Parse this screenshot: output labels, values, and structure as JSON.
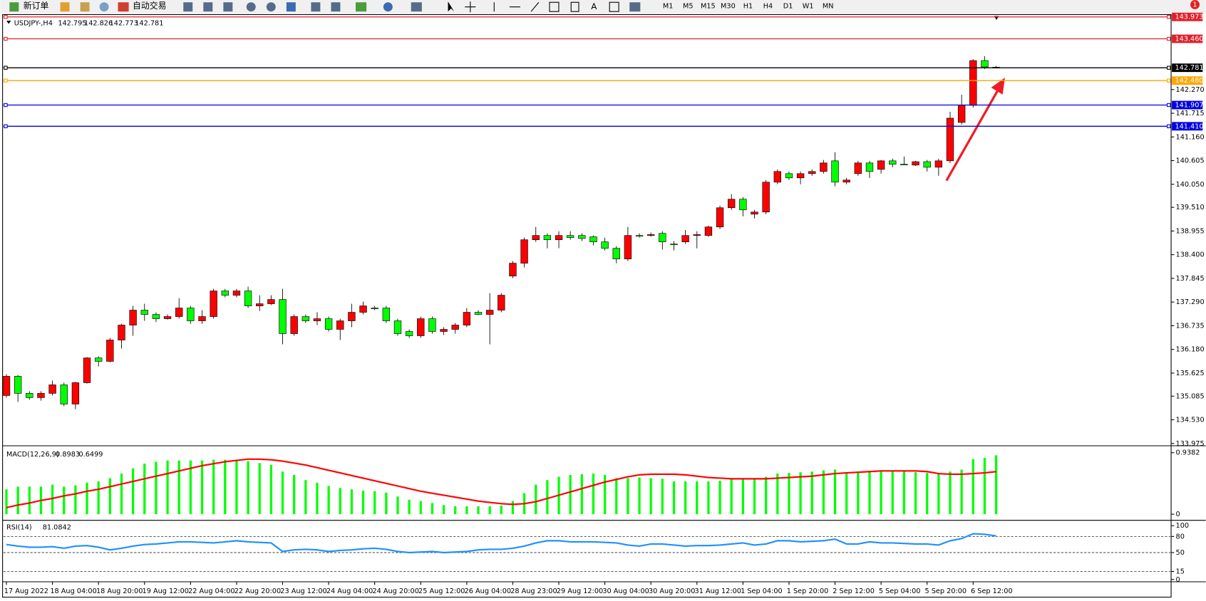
{
  "toolbar": {
    "new_order": "新订单",
    "auto_trade": "自动交易",
    "timeframes": [
      "M1",
      "M5",
      "M15",
      "M30",
      "H1",
      "H4",
      "D1",
      "W1",
      "MN"
    ],
    "badge": "1"
  },
  "chart_data": [
    {
      "type": "candlestick",
      "title": "USDJPY-,H4",
      "header_values": [
        142.795,
        142.826,
        142.773,
        142.781
      ],
      "up_color": "#ff0000",
      "down_color": "#00ff00",
      "categories": [
        "17 Aug 2022",
        null,
        null,
        null,
        "18 Aug 04:00",
        null,
        null,
        null,
        "18 Aug 20:00",
        null,
        null,
        null,
        "19 Aug 12:00",
        null,
        null,
        null,
        "22 Aug 04:00",
        null,
        null,
        null,
        "22 Aug 20:00",
        null,
        null,
        null,
        "23 Aug 12:00",
        null,
        null,
        null,
        "24 Aug 04:00",
        null,
        null,
        null,
        "24 Aug 20:00",
        null,
        null,
        null,
        "25 Aug 12:00",
        null,
        null,
        null,
        "26 Aug 04:00",
        null,
        null,
        null,
        "28 Aug 23:00",
        null,
        null,
        null,
        "29 Aug 12:00",
        null,
        null,
        null,
        "30 Aug 04:00",
        null,
        null,
        null,
        "30 Aug 20:00",
        null,
        null,
        null,
        "31 Aug 12:00",
        null,
        null,
        null,
        "1 Sep 04:00",
        null,
        null,
        null,
        "1 Sep 20:00",
        null,
        null,
        null,
        "2 Sep 12:00",
        null,
        null,
        null,
        "5 Sep 04:00",
        null,
        null,
        null,
        "5 Sep 20:00",
        null,
        null,
        null,
        "6 Sep 12:00",
        null,
        null
      ],
      "open": [
        135.1,
        135.55,
        135.15,
        135.05,
        135.15,
        135.35,
        134.9,
        135.4,
        135.98,
        135.9,
        136.4,
        136.75,
        137.1,
        137.0,
        136.9,
        136.95,
        137.15,
        136.85,
        136.95,
        137.55,
        137.45,
        137.55,
        137.2,
        137.25,
        137.35,
        136.55,
        136.95,
        136.85,
        136.9,
        136.65,
        136.85,
        137.05,
        137.15,
        137.15,
        136.85,
        136.6,
        136.5,
        136.9,
        136.6,
        136.65,
        136.75,
        137.05,
        137.0,
        137.1,
        137.9,
        138.2,
        138.75,
        138.85,
        138.75,
        138.85,
        138.85,
        138.82,
        138.7,
        138.55,
        138.3,
        138.85,
        138.85,
        138.9,
        138.65,
        138.7,
        138.85,
        138.85,
        139.05,
        139.5,
        139.7,
        139.35,
        139.4,
        140.1,
        140.3,
        140.2,
        140.3,
        140.35,
        140.6,
        140.1,
        140.3,
        140.55,
        140.4,
        140.6,
        140.52,
        140.5,
        140.58,
        140.45,
        140.6,
        141.5,
        141.9,
        142.95,
        142.795
      ],
      "high": [
        135.6,
        135.58,
        135.2,
        135.2,
        135.45,
        135.4,
        135.42,
        136.0,
        136.02,
        136.45,
        136.78,
        137.2,
        137.25,
        137.05,
        137.0,
        137.38,
        137.2,
        137.1,
        137.6,
        137.6,
        137.6,
        137.65,
        137.45,
        137.45,
        137.6,
        137.0,
        137.0,
        137.05,
        136.95,
        136.9,
        137.25,
        137.3,
        137.2,
        137.2,
        136.9,
        136.65,
        136.95,
        136.95,
        136.7,
        136.8,
        137.15,
        137.1,
        137.5,
        137.5,
        138.25,
        138.8,
        139.05,
        138.9,
        138.95,
        138.95,
        138.9,
        138.85,
        138.8,
        138.6,
        139.05,
        138.9,
        138.92,
        138.95,
        138.72,
        138.98,
        138.95,
        139.08,
        139.55,
        139.82,
        139.75,
        139.45,
        140.15,
        140.4,
        140.35,
        140.35,
        140.4,
        140.62,
        140.8,
        140.2,
        140.6,
        140.6,
        140.62,
        140.65,
        140.7,
        140.6,
        140.62,
        140.65,
        141.75,
        142.15,
        142.98,
        143.05,
        142.826
      ],
      "low": [
        135.05,
        134.95,
        135.0,
        134.98,
        135.1,
        134.85,
        134.78,
        135.38,
        135.78,
        135.88,
        136.2,
        136.5,
        136.85,
        136.82,
        136.88,
        136.9,
        136.78,
        136.78,
        136.9,
        137.4,
        137.4,
        137.15,
        137.08,
        137.22,
        136.3,
        136.5,
        136.8,
        136.75,
        136.6,
        136.4,
        136.7,
        137.0,
        137.1,
        136.8,
        136.5,
        136.45,
        136.45,
        136.55,
        136.52,
        136.55,
        136.7,
        136.98,
        136.3,
        137.05,
        137.85,
        138.1,
        138.7,
        138.55,
        138.55,
        138.75,
        138.72,
        138.62,
        138.5,
        138.2,
        138.25,
        138.8,
        138.82,
        138.52,
        138.5,
        138.65,
        138.55,
        138.82,
        139.0,
        139.45,
        139.3,
        139.25,
        139.35,
        140.05,
        140.15,
        140.05,
        140.25,
        140.3,
        140.0,
        140.05,
        140.25,
        140.2,
        140.3,
        140.45,
        140.5,
        140.48,
        140.35,
        140.25,
        140.55,
        141.45,
        141.85,
        142.75,
        142.773
      ],
      "close": [
        135.55,
        135.15,
        135.05,
        135.15,
        135.35,
        134.9,
        135.4,
        135.98,
        135.9,
        136.4,
        136.75,
        137.1,
        137.0,
        136.9,
        136.95,
        137.15,
        136.85,
        136.95,
        137.55,
        137.45,
        137.55,
        137.2,
        137.25,
        137.35,
        136.55,
        136.95,
        136.85,
        136.9,
        136.65,
        136.85,
        137.05,
        137.2,
        137.15,
        136.85,
        136.55,
        136.5,
        136.9,
        136.6,
        136.65,
        136.75,
        137.05,
        137.0,
        137.1,
        137.45,
        138.2,
        138.75,
        138.85,
        138.75,
        138.85,
        138.8,
        138.78,
        138.7,
        138.55,
        138.3,
        138.85,
        138.85,
        138.87,
        138.7,
        138.65,
        138.85,
        138.87,
        139.05,
        139.5,
        139.7,
        139.45,
        139.4,
        140.1,
        140.35,
        140.2,
        140.3,
        140.35,
        140.55,
        140.1,
        140.15,
        140.55,
        140.35,
        140.6,
        140.52,
        140.52,
        140.58,
        140.45,
        140.6,
        141.6,
        141.9,
        142.95,
        142.8,
        142.781
      ],
      "ylim": [
        133.94,
        144.009
      ],
      "yticks": [
        133.975,
        {
          "value": 134.53,
          "label": "134.530"
        },
        135.085,
        135.625,
        {
          "value": 136.18,
          "label": "136.180"
        },
        136.735,
        {
          "value": 137.29,
          "label": "137.290"
        },
        137.845,
        {
          "value": 138.4,
          "label": "138.400"
        },
        138.955,
        {
          "value": 139.51,
          "label": "139.510"
        },
        {
          "value": 140.05,
          "label": "140.050"
        },
        140.605,
        {
          "value": 141.16,
          "label": "141.160"
        },
        141.715,
        {
          "value": 142.27,
          "label": "142.270"
        }
      ],
      "levels": [
        {
          "value": 143.973,
          "label": "143.973",
          "color": "#e0202a"
        },
        {
          "value": 143.46,
          "label": "143.460",
          "color": "#e0202a"
        },
        {
          "value": 142.781,
          "label": "142.781",
          "color": "#000000"
        },
        {
          "value": 142.48,
          "label": "142.480",
          "color": "#ffa500"
        },
        {
          "value": 141.907,
          "label": "141.907",
          "color": "#0000e0"
        },
        {
          "value": 141.41,
          "label": "141.410",
          "color": "#0000e0"
        }
      ]
    },
    {
      "type": "macd",
      "title": "MACD(12,26,9)",
      "header_values": [
        0.8983,
        0.6499
      ],
      "ylim": [
        -0.07,
        1.009
      ],
      "yticks": [
        0,
        0.9382
      ],
      "series": [
        {
          "color": "#00ff00",
          "values": [
            0.38,
            0.42,
            0.42,
            0.42,
            0.45,
            0.42,
            0.44,
            0.48,
            0.5,
            0.55,
            0.62,
            0.7,
            0.77,
            0.8,
            0.82,
            0.82,
            0.82,
            0.82,
            0.83,
            0.83,
            0.83,
            0.81,
            0.78,
            0.75,
            0.65,
            0.6,
            0.52,
            0.48,
            0.43,
            0.4,
            0.38,
            0.36,
            0.35,
            0.33,
            0.27,
            0.22,
            0.2,
            0.17,
            0.14,
            0.12,
            0.12,
            0.12,
            0.12,
            0.13,
            0.2,
            0.32,
            0.45,
            0.52,
            0.57,
            0.6,
            0.61,
            0.62,
            0.6,
            0.55,
            0.55,
            0.56,
            0.55,
            0.54,
            0.5,
            0.5,
            0.5,
            0.5,
            0.51,
            0.53,
            0.54,
            0.53,
            0.57,
            0.62,
            0.63,
            0.64,
            0.65,
            0.67,
            0.68,
            0.64,
            0.65,
            0.65,
            0.66,
            0.66,
            0.66,
            0.64,
            0.63,
            0.62,
            0.65,
            0.68,
            0.84,
            0.86,
            0.8983
          ]
        },
        {
          "color": "#ff0000",
          "values": [
            0.1,
            0.14,
            0.17,
            0.21,
            0.24,
            0.28,
            0.31,
            0.35,
            0.38,
            0.42,
            0.46,
            0.5,
            0.54,
            0.58,
            0.62,
            0.66,
            0.7,
            0.74,
            0.77,
            0.8,
            0.82,
            0.84,
            0.84,
            0.83,
            0.81,
            0.78,
            0.75,
            0.71,
            0.67,
            0.63,
            0.59,
            0.55,
            0.51,
            0.47,
            0.43,
            0.39,
            0.35,
            0.32,
            0.29,
            0.26,
            0.23,
            0.2,
            0.18,
            0.16,
            0.15,
            0.16,
            0.19,
            0.24,
            0.29,
            0.34,
            0.39,
            0.44,
            0.49,
            0.53,
            0.57,
            0.6,
            0.61,
            0.61,
            0.61,
            0.6,
            0.58,
            0.56,
            0.55,
            0.54,
            0.54,
            0.54,
            0.54,
            0.55,
            0.56,
            0.57,
            0.58,
            0.6,
            0.62,
            0.63,
            0.64,
            0.65,
            0.66,
            0.66,
            0.66,
            0.66,
            0.65,
            0.62,
            0.61,
            0.61,
            0.62,
            0.63,
            0.6499
          ]
        }
      ]
    },
    {
      "type": "rsi",
      "title": "RSI(14)",
      "header_values": [
        81.0842
      ],
      "ylim": [
        -2.86,
        108.57
      ],
      "yticks": [
        0,
        15,
        50,
        80,
        100
      ],
      "series": [
        {
          "color": "#1e90ff",
          "values": [
            65,
            62,
            60,
            60,
            61,
            58,
            62,
            63,
            60,
            55,
            58,
            62,
            65,
            66,
            68,
            70,
            70,
            69,
            68,
            70,
            72,
            70,
            69,
            68,
            52,
            55,
            56,
            55,
            52,
            54,
            55,
            57,
            58,
            56,
            52,
            50,
            51,
            52,
            50,
            51,
            52,
            55,
            56,
            56,
            58,
            62,
            68,
            72,
            72,
            70,
            70,
            70,
            69,
            68,
            64,
            62,
            66,
            66,
            64,
            62,
            63,
            63,
            64,
            66,
            68,
            64,
            66,
            72,
            72,
            70,
            71,
            72,
            75,
            66,
            66,
            70,
            68,
            68,
            67,
            66,
            66,
            64,
            72,
            76,
            85,
            84,
            81.0842
          ]
        }
      ]
    }
  ]
}
